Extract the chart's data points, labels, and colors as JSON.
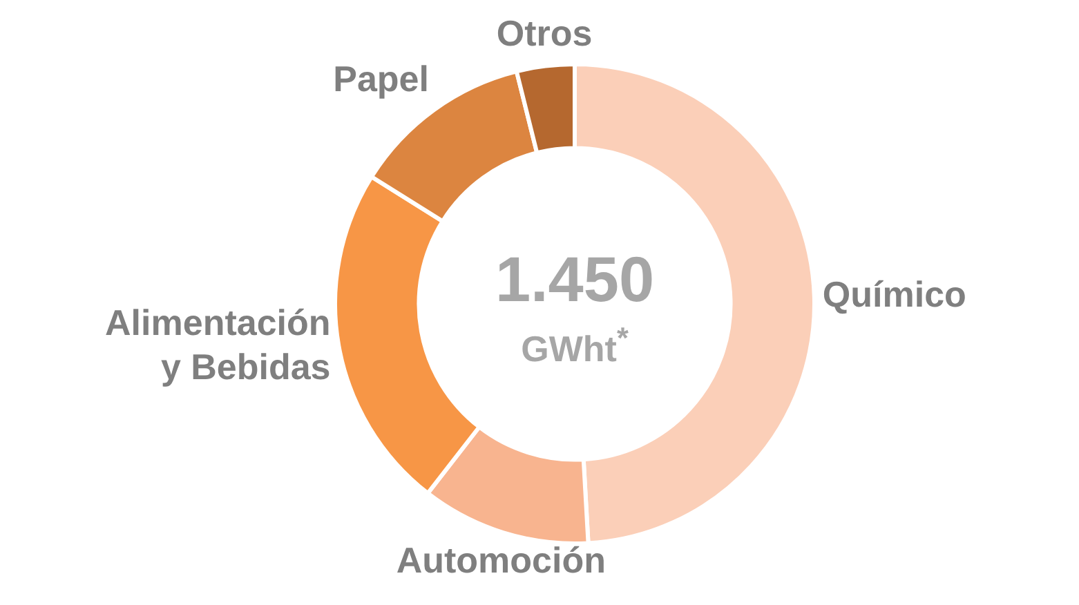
{
  "chart_data": {
    "type": "donut",
    "categories": [
      "Químico",
      "Automoción",
      "Alimentación y Bebidas",
      "Papel",
      "Otros"
    ],
    "values": [
      49.1,
      11.4,
      23.4,
      12.2,
      3.9
    ],
    "colors": [
      "#fbcfb8",
      "#f8b48f",
      "#f79646",
      "#dc8540",
      "#b5682f"
    ],
    "annotations": [
      "1.450",
      "GWht$^{*}$"
    ],
    "legend": false
  }
}
